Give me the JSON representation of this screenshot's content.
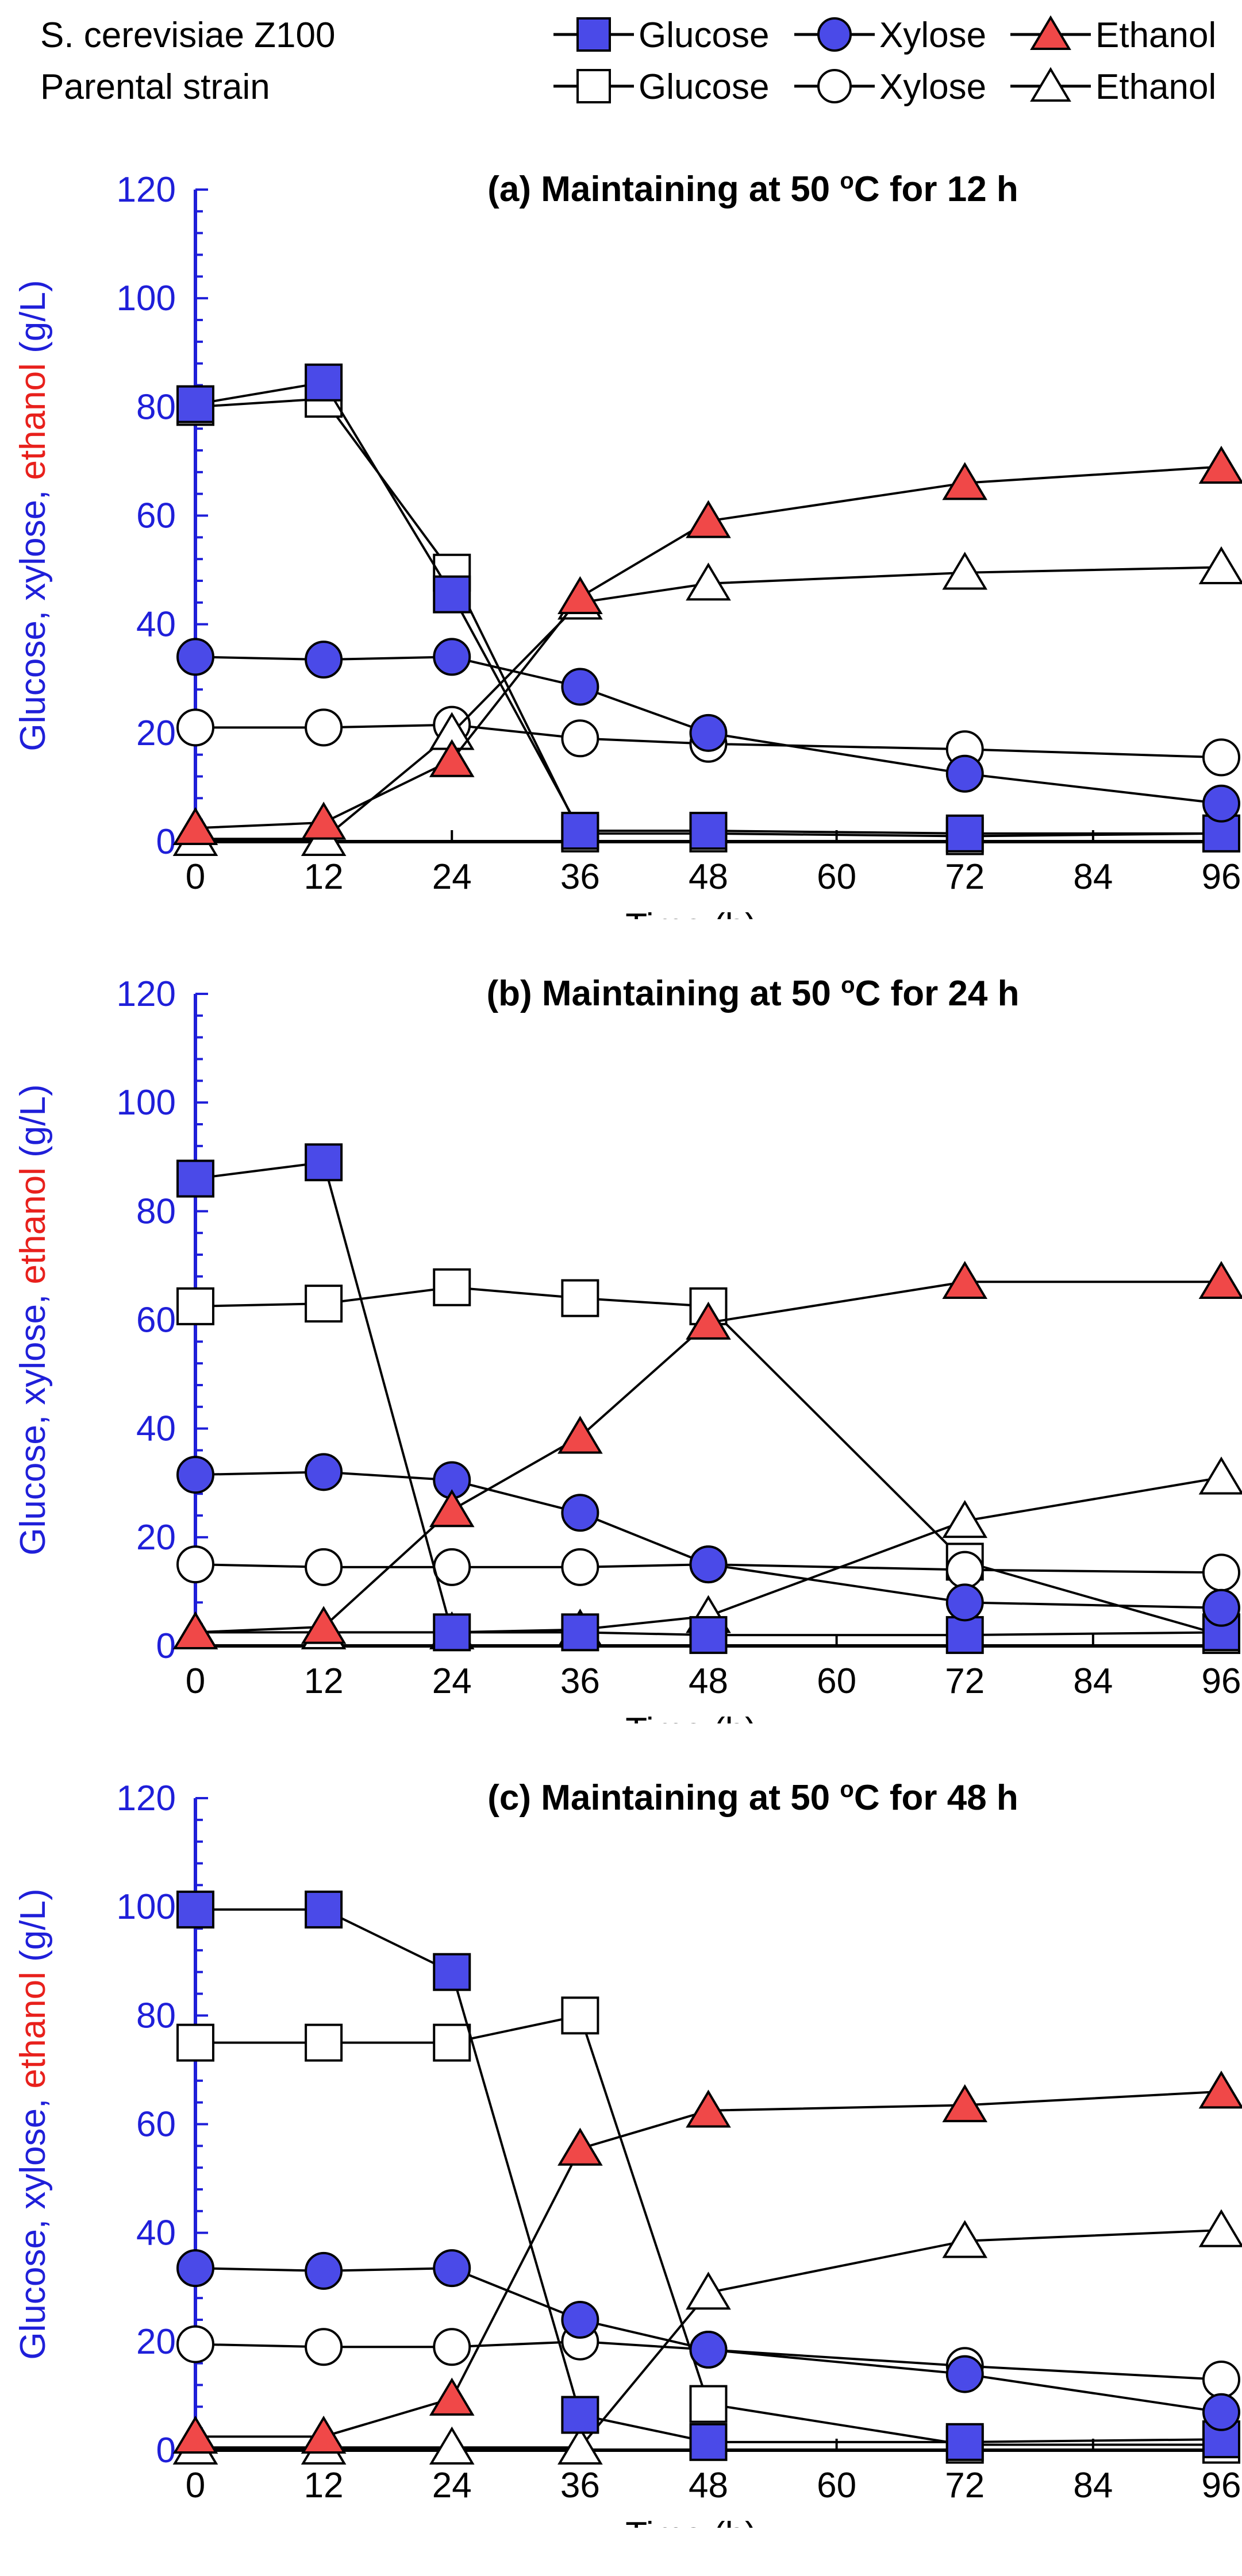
{
  "legend": {
    "groups": [
      {
        "label": "S. cerevisiae Z100",
        "markers": [
          "Glucose",
          "Xylose",
          "Ethanol"
        ],
        "filled": true
      },
      {
        "label": "Parental strain",
        "markers": [
          "Glucose",
          "Xylose",
          "Ethanol"
        ],
        "filled": false
      }
    ]
  },
  "colors": {
    "glucose": "#4a4ae8",
    "xylose": "#4a4ae8",
    "ethanol": "#f04848",
    "axis_blue": "#1f1fd9",
    "ylabel_blue": "#1f1fd9",
    "ylabel_red": "#e8201c",
    "open": "#ffffff",
    "line": "#000000",
    "errorbar": "#555555"
  },
  "ylabel_parts": [
    {
      "text": "Glucose, xylose, ",
      "color": "blue"
    },
    {
      "text": "ethanol",
      "color": "red"
    },
    {
      "text": " (g/L)",
      "color": "blue"
    }
  ],
  "chart_data": [
    {
      "type": "line",
      "title": "(a) Maintaining at 50 ",
      "title_sup": "o",
      "title_end": "C for 12 h",
      "xlabel": "Time (h)",
      "ylabel": "Glucose, xylose, ethanol (g/L)",
      "xlim": [
        0,
        96
      ],
      "ylim": [
        0,
        120
      ],
      "xticks": [
        0,
        12,
        24,
        36,
        48,
        60,
        72,
        84,
        96
      ],
      "yticks": [
        0,
        20,
        40,
        60,
        80,
        100,
        120
      ],
      "grid": false,
      "series": [
        {
          "name": "Glucose",
          "strain": "S. cerevisiae Z100",
          "marker": "square",
          "filled": true,
          "x": [
            0,
            12,
            24,
            36,
            48,
            72,
            96
          ],
          "y": [
            80.5,
            84.5,
            45.5,
            2,
            2,
            1.5,
            1.5
          ]
        },
        {
          "name": "Xylose",
          "strain": "S. cerevisiae Z100",
          "marker": "circle",
          "filled": true,
          "x": [
            0,
            12,
            24,
            36,
            48,
            72,
            96
          ],
          "y": [
            34,
            33.5,
            34,
            28.5,
            20,
            12.5,
            7
          ]
        },
        {
          "name": "Ethanol",
          "strain": "S. cerevisiae Z100",
          "marker": "triangle",
          "filled": true,
          "x": [
            0,
            12,
            24,
            36,
            48,
            72,
            96
          ],
          "y": [
            2.5,
            3.5,
            15,
            45,
            59,
            66,
            69
          ]
        },
        {
          "name": "Glucose",
          "strain": "Parental strain",
          "marker": "square",
          "filled": false,
          "x": [
            0,
            12,
            24,
            36,
            48,
            72,
            96
          ],
          "y": [
            80,
            81.5,
            49.5,
            1.5,
            1.5,
            1,
            1.5
          ]
        },
        {
          "name": "Xylose",
          "strain": "Parental strain",
          "marker": "circle",
          "filled": false,
          "x": [
            0,
            12,
            24,
            36,
            48,
            72,
            96
          ],
          "y": [
            21,
            21,
            21.5,
            19,
            18,
            17,
            15.5
          ]
        },
        {
          "name": "Ethanol",
          "strain": "Parental strain",
          "marker": "triangle",
          "filled": false,
          "x": [
            0,
            12,
            24,
            36,
            48,
            72,
            96
          ],
          "y": [
            0.5,
            0.5,
            20,
            44,
            47.5,
            49.5,
            50.5
          ]
        }
      ]
    },
    {
      "type": "line",
      "title": "(b) Maintaining at 50 ",
      "title_sup": "o",
      "title_end": "C for 24 h",
      "xlabel": "Time (h)",
      "ylabel": "Glucose, xylose, ethanol (g/L)",
      "xlim": [
        0,
        96
      ],
      "ylim": [
        0,
        120
      ],
      "xticks": [
        0,
        12,
        24,
        36,
        48,
        60,
        72,
        84,
        96
      ],
      "yticks": [
        0,
        20,
        40,
        60,
        80,
        100,
        120
      ],
      "grid": false,
      "series": [
        {
          "name": "Glucose",
          "strain": "S. cerevisiae Z100",
          "marker": "square",
          "filled": true,
          "x": [
            0,
            12,
            24,
            36,
            48,
            72,
            96
          ],
          "y": [
            86,
            89,
            2.5,
            2.5,
            2,
            2,
            2.5
          ]
        },
        {
          "name": "Xylose",
          "strain": "S. cerevisiae Z100",
          "marker": "circle",
          "filled": true,
          "x": [
            0,
            12,
            24,
            36,
            48,
            72,
            96
          ],
          "y": [
            31.5,
            32,
            30.5,
            24.5,
            15,
            8,
            7
          ]
        },
        {
          "name": "Ethanol",
          "strain": "S. cerevisiae Z100",
          "marker": "triangle",
          "filled": true,
          "x": [
            0,
            12,
            24,
            36,
            48,
            72,
            96
          ],
          "y": [
            2.5,
            3.5,
            25,
            38.5,
            59.5,
            67,
            67
          ]
        },
        {
          "name": "Glucose",
          "strain": "Parental strain",
          "marker": "square",
          "filled": false,
          "x": [
            0,
            12,
            24,
            36,
            48,
            72,
            96
          ],
          "y": [
            62.5,
            63,
            66,
            64,
            62.5,
            15.5,
            2
          ]
        },
        {
          "name": "Xylose",
          "strain": "Parental strain",
          "marker": "circle",
          "filled": false,
          "x": [
            0,
            12,
            24,
            36,
            48,
            72,
            96
          ],
          "y": [
            15,
            14.5,
            14.5,
            14.5,
            15,
            14,
            13.5
          ]
        },
        {
          "name": "Ethanol",
          "strain": "Parental strain",
          "marker": "triangle",
          "filled": false,
          "x": [
            0,
            12,
            24,
            36,
            48,
            72,
            96
          ],
          "y": [
            2.5,
            2.5,
            2.5,
            3,
            5.5,
            23,
            31
          ]
        }
      ]
    },
    {
      "type": "line",
      "title": "(c) Maintaining at 50 ",
      "title_sup": "o",
      "title_end": "C for 48 h",
      "xlabel": "Time (h)",
      "ylabel": "Glucose, xylose, ethanol (g/L)",
      "xlim": [
        0,
        96
      ],
      "ylim": [
        0,
        120
      ],
      "xticks": [
        0,
        12,
        24,
        36,
        48,
        60,
        72,
        84,
        96
      ],
      "yticks": [
        0,
        20,
        40,
        60,
        80,
        100,
        120
      ],
      "grid": false,
      "series": [
        {
          "name": "Glucose",
          "strain": "S. cerevisiae Z100",
          "marker": "square",
          "filled": true,
          "x": [
            0,
            12,
            24,
            36,
            48,
            72,
            96
          ],
          "y": [
            99.5,
            99.5,
            88,
            6.5,
            1.5,
            1.5,
            2
          ]
        },
        {
          "name": "Xylose",
          "strain": "S. cerevisiae Z100",
          "marker": "circle",
          "filled": true,
          "x": [
            0,
            12,
            24,
            36,
            48,
            72,
            96
          ],
          "y": [
            33.5,
            33,
            33.5,
            24,
            18.5,
            14,
            7
          ]
        },
        {
          "name": "Ethanol",
          "strain": "S. cerevisiae Z100",
          "marker": "triangle",
          "filled": true,
          "x": [
            0,
            12,
            24,
            36,
            48,
            72,
            96
          ],
          "y": [
            2.5,
            2.5,
            9.5,
            55.5,
            62.5,
            63.5,
            66
          ]
        },
        {
          "name": "Glucose",
          "strain": "Parental strain",
          "marker": "square",
          "filled": false,
          "x": [
            0,
            12,
            24,
            36,
            48,
            72,
            96
          ],
          "y": [
            75,
            75,
            75,
            80,
            8.5,
            1,
            1
          ]
        },
        {
          "name": "Xylose",
          "strain": "Parental strain",
          "marker": "circle",
          "filled": false,
          "x": [
            0,
            12,
            24,
            36,
            48,
            72,
            96
          ],
          "y": [
            19.5,
            19,
            19,
            20,
            18.5,
            15.5,
            13
          ]
        },
        {
          "name": "Ethanol",
          "strain": "Parental strain",
          "marker": "triangle",
          "filled": false,
          "x": [
            0,
            12,
            24,
            36,
            48,
            72,
            96
          ],
          "y": [
            0.5,
            0.5,
            0.5,
            0.5,
            29,
            38.5,
            40.5
          ]
        }
      ]
    }
  ]
}
